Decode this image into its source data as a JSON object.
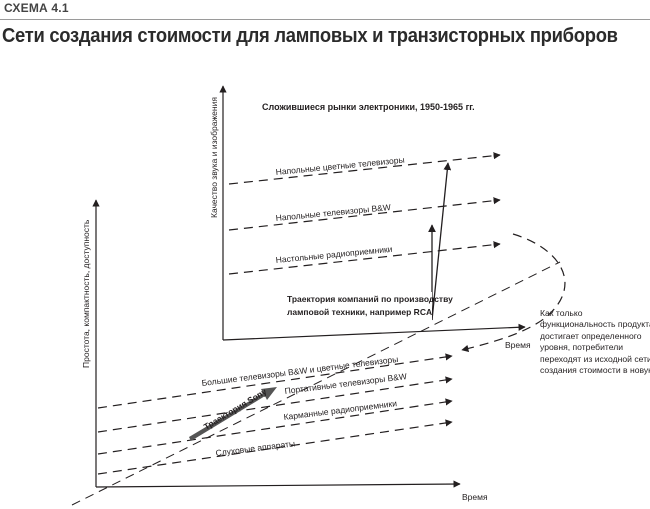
{
  "header": {
    "scheme_label": "СХЕМА 4.1",
    "title": "Сети создания стоимости для ламповых и транзисторных приборов"
  },
  "upper_plane": {
    "title": "Сложившиеся рынки электроники, 1950-1965 гг.",
    "y_axis_label": "Качество звука и изображения",
    "x_axis_label": "Время",
    "markets": [
      "Напольные цветные телевизоры",
      "Напольные телевизоры B&W",
      "Настольные радиоприемники"
    ],
    "trajectory_label_line1": "Траектория компаний по производству",
    "trajectory_label_line2": "ламповой техники, например RCA"
  },
  "lower_plane": {
    "y_axis_label": "Простота, компактность, доступность",
    "x_axis_label": "Время",
    "markets": [
      "Большие телевизоры B&W и цветные телевизоры",
      "Портативные телевизоры B&W",
      "Карманные радиоприемники",
      "Слуховые аппараты"
    ],
    "trajectory_label": "Траектория Sony"
  },
  "side_note": {
    "lines": [
      "Как только",
      "функциональность продукта",
      "достигает определенного",
      "уровня, потребители",
      "переходят из исходной сети",
      "создания стоимости в новую"
    ]
  },
  "colors": {
    "ink": "#231f20",
    "rule": "#9a9a9a",
    "trajectory_fill": "#555555"
  }
}
